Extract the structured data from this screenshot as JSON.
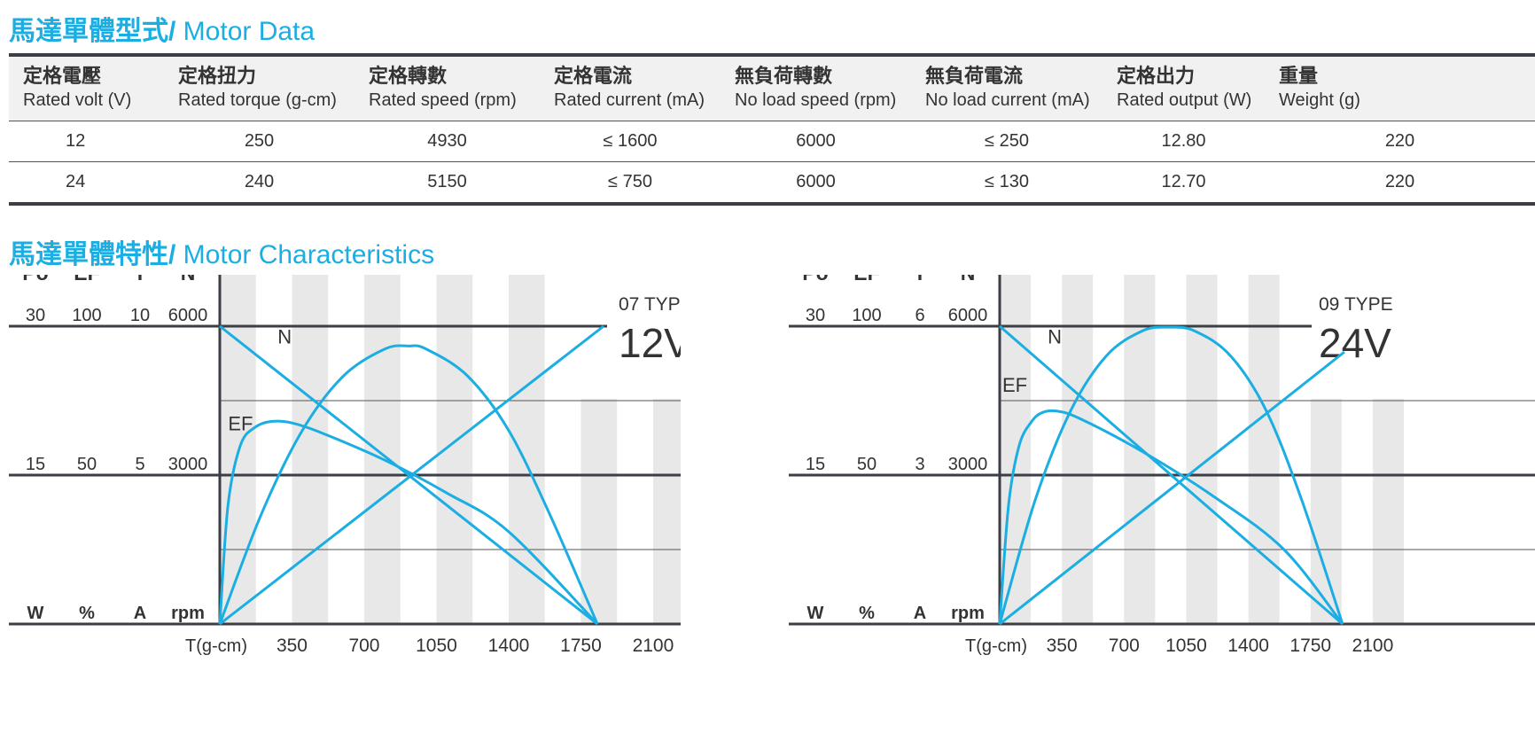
{
  "sections": {
    "motor_data": {
      "zh": "馬達單體型式/",
      "en": " Motor Data"
    },
    "motor_characteristics": {
      "zh": "馬達單體特性/",
      "en": " Motor Characteristics"
    }
  },
  "spec_table": {
    "headers": [
      {
        "zh": "定格電壓",
        "en": "Rated volt (V)"
      },
      {
        "zh": "定格扭力",
        "en": "Rated torque (g-cm)"
      },
      {
        "zh": "定格轉數",
        "en": "Rated speed (rpm)"
      },
      {
        "zh": "定格電流",
        "en": "Rated current (mA)"
      },
      {
        "zh": "無負荷轉數",
        "en": "No load speed (rpm)"
      },
      {
        "zh": "無負荷電流",
        "en": "No load current (mA)"
      },
      {
        "zh": "定格出力",
        "en": "Rated output (W)"
      },
      {
        "zh": "重量",
        "en": "Weight (g)"
      }
    ],
    "rows": [
      [
        "12",
        "250",
        "4930",
        "≤ 1600",
        "6000",
        "≤ 250",
        "12.80",
        "220"
      ],
      [
        "24",
        "240",
        "5150",
        "≤ 750",
        "6000",
        "≤ 130",
        "12.70",
        "220"
      ]
    ]
  },
  "colors": {
    "accent": "#1aaee3",
    "curve": "#1aaee3",
    "axis": "#3b3e44",
    "stripe": "#e8e8e9",
    "header_bg": "#f1f1f2"
  },
  "chart_data": [
    {
      "type": "line",
      "type_label": "07 TYPE",
      "voltage_label": "12V",
      "xlabel": "T(g-cm)",
      "x_ticks": [
        "350",
        "700",
        "1050",
        "1400",
        "1750",
        "2100"
      ],
      "xlim": [
        0,
        2300
      ],
      "axis_headers": [
        "Po",
        "EF",
        "I",
        "N"
      ],
      "axis_top_values": [
        "30",
        "100",
        "10",
        "6000"
      ],
      "axis_mid_values": [
        "15",
        "50",
        "5",
        "3000"
      ],
      "axis_units": [
        "W",
        "%",
        "A",
        "rpm"
      ],
      "grid": true,
      "series": [
        {
          "name": "N",
          "label": "N",
          "scale_max": 6000,
          "x": [
            0,
            1830
          ],
          "y": [
            6000,
            0
          ],
          "label_at": [
            280,
            5650
          ]
        },
        {
          "name": "I",
          "label": "I",
          "scale_max": 10,
          "x": [
            0,
            1860
          ],
          "y": [
            0,
            10
          ],
          "label_at": [
            1650,
            9420
          ]
        },
        {
          "name": "Po",
          "label": "Po",
          "scale_max": 30,
          "x": [
            0,
            200,
            400,
            600,
            800,
            915,
            1000,
            1200,
            1400,
            1600,
            1830
          ],
          "y": [
            0,
            11,
            19.5,
            25,
            27.7,
            28,
            27.7,
            25,
            19.5,
            11,
            0
          ],
          "label_at": [
            970,
            26200
          ]
        },
        {
          "name": "EF",
          "label": "EF",
          "scale_max": 100,
          "x": [
            0,
            40,
            100,
            170,
            250,
            350,
            500,
            800,
            1100,
            1400,
            1830
          ],
          "y": [
            0,
            40,
            60,
            66,
            68,
            67.5,
            64,
            55,
            44,
            31,
            0
          ],
          "label_at": [
            40,
            65
          ]
        }
      ]
    },
    {
      "type": "line",
      "type_label": "09 TYPE",
      "voltage_label": "24V",
      "xlabel": "T(g-cm)",
      "x_ticks": [
        "350",
        "700",
        "1050",
        "1400",
        "1750",
        "2100"
      ],
      "xlim": [
        0,
        2300
      ],
      "axis_headers": [
        "Po",
        "EF",
        "I",
        "N"
      ],
      "axis_top_values": [
        "30",
        "100",
        "6",
        "6000"
      ],
      "axis_mid_values": [
        "15",
        "50",
        "3",
        "3000"
      ],
      "axis_units": [
        "W",
        "%",
        "A",
        "rpm"
      ],
      "grid": true,
      "series": [
        {
          "name": "N",
          "label": "N",
          "scale_max": 6000,
          "x": [
            0,
            1930
          ],
          "y": [
            6000,
            0
          ],
          "label_at": [
            270,
            5650
          ]
        },
        {
          "name": "I",
          "label": "I",
          "scale_max": 6,
          "x": [
            0,
            1940
          ],
          "y": [
            0,
            5.48
          ],
          "label_at": [
            1830,
            5400
          ]
        },
        {
          "name": "Po",
          "label": "Po",
          "scale_max": 30,
          "x": [
            0,
            200,
            400,
            600,
            800,
            950,
            1100,
            1300,
            1500,
            1700,
            1930
          ],
          "y": [
            0,
            12.5,
            21.5,
            27,
            29.5,
            29.9,
            29.5,
            27,
            21.5,
            12.5,
            0
          ],
          "label_at": [
            965,
            30700
          ]
        },
        {
          "name": "EF",
          "label": "EF",
          "scale_max": 100,
          "x": [
            0,
            50,
            110,
            180,
            240,
            320,
            450,
            800,
            1200,
            1600,
            1930
          ],
          "y": [
            0,
            40,
            60,
            68,
            71,
            71.5,
            69,
            58,
            43,
            25,
            0
          ],
          "label_at": [
            15,
            78
          ]
        }
      ]
    }
  ]
}
